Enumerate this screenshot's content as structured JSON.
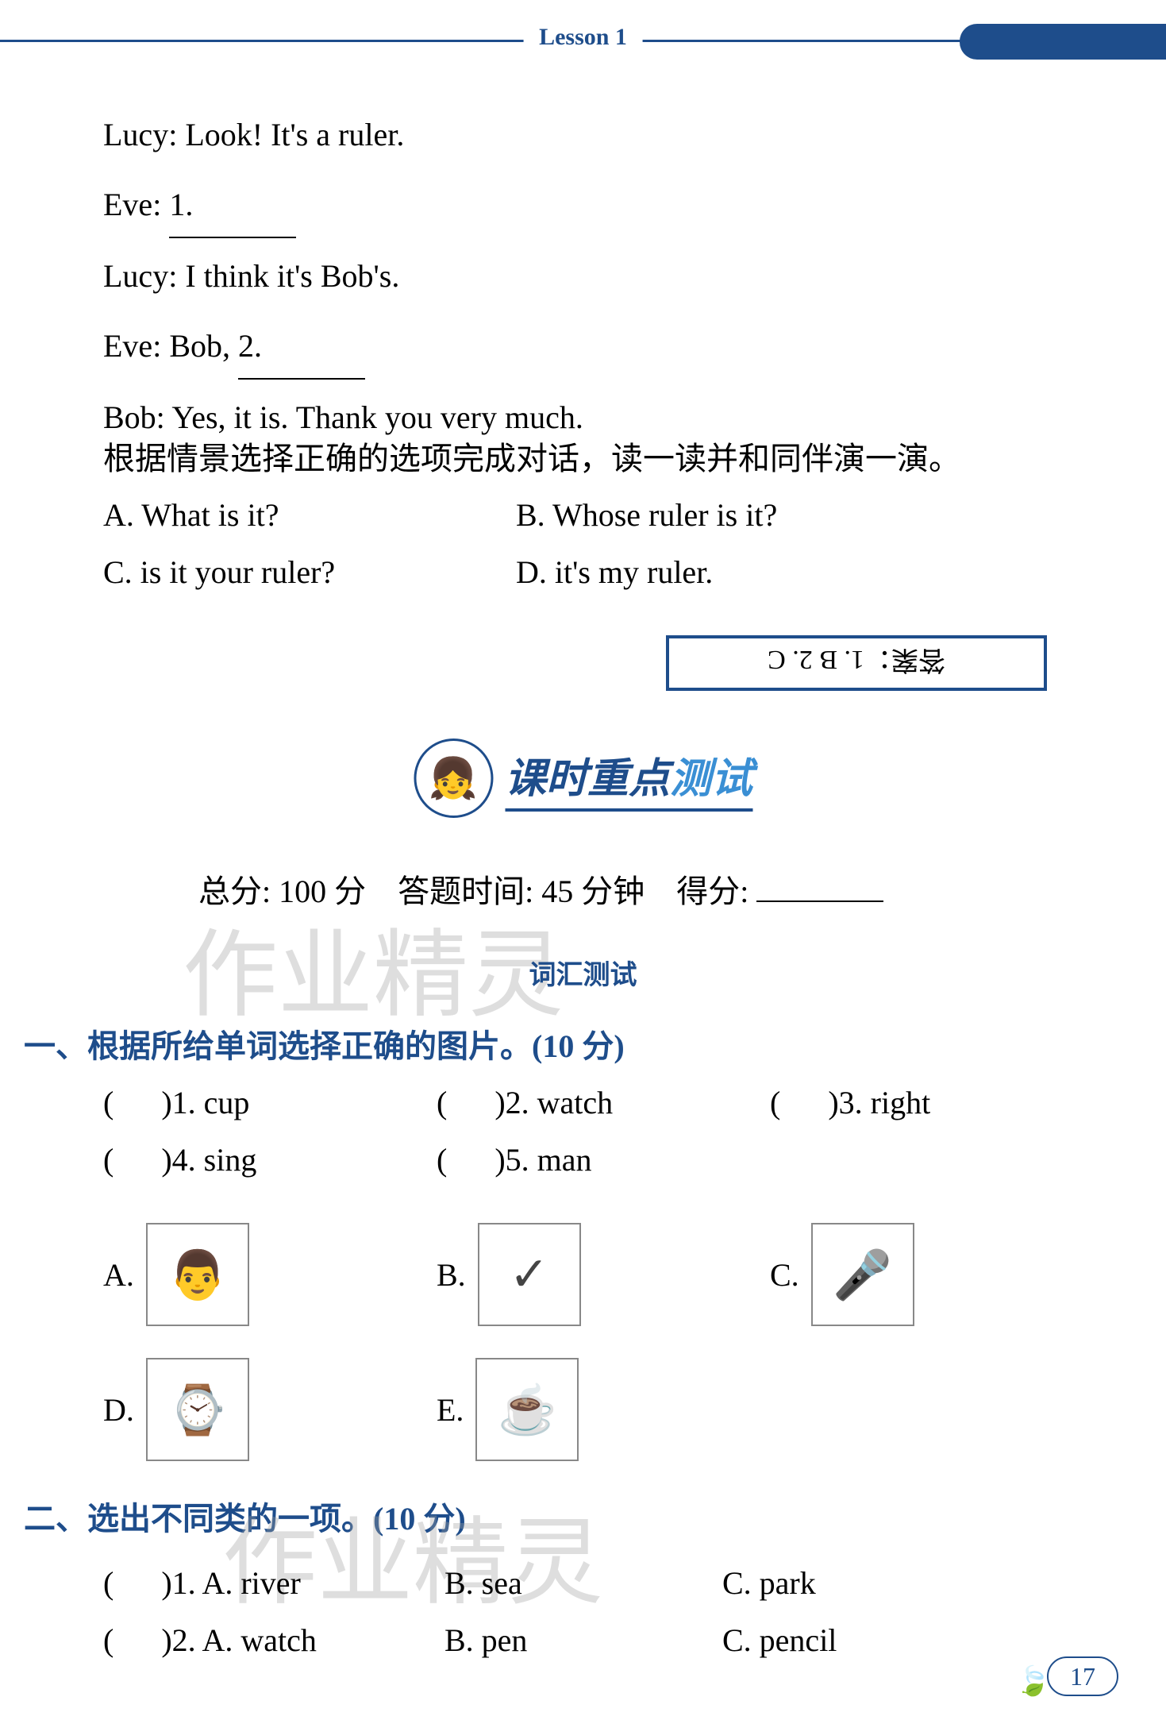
{
  "header": {
    "lesson": "Lesson 1"
  },
  "dialogue": {
    "line1_speaker": "Lucy:",
    "line1_text": "Look! It's a ruler.",
    "line2_speaker": "Eve:",
    "line2_blank": "1.",
    "line3_speaker": "Lucy:",
    "line3_text": "I think it's Bob's.",
    "line4_speaker": "Eve:",
    "line4_text1": "Bob,",
    "line4_blank": "2.",
    "line5_speaker": "Bob:",
    "line5_text": "Yes, it is. Thank you very much.",
    "instruction": "根据情景选择正确的选项完成对话，读一读并和同伴演一演。",
    "optA": "A. What is it?",
    "optB": "B. Whose ruler is it?",
    "optC": "C. is it your ruler?",
    "optD": "D. it's my ruler.",
    "answer": "答案：1. B  2. C"
  },
  "section": {
    "title1": "课时重点",
    "title2": "测试",
    "score_total_label": "总分:",
    "score_total_value": "100 分",
    "time_label": "答题时间:",
    "time_value": "45 分钟",
    "score_label": "得分:",
    "vocab_label": "词汇测试"
  },
  "watermarks": {
    "w1": "作业精灵",
    "w2": "作业精灵"
  },
  "q1": {
    "title": "一、根据所给单词选择正确的图片。(10 分)",
    "items": [
      {
        "num": "1.",
        "word": "cup"
      },
      {
        "num": "2.",
        "word": "watch"
      },
      {
        "num": "3.",
        "word": "right"
      },
      {
        "num": "4.",
        "word": "sing"
      },
      {
        "num": "5.",
        "word": "man"
      }
    ],
    "pics": [
      {
        "label": "A.",
        "icon": "👨"
      },
      {
        "label": "B.",
        "icon": "✓"
      },
      {
        "label": "C.",
        "icon": "🎤"
      },
      {
        "label": "D.",
        "icon": "⌚"
      },
      {
        "label": "E.",
        "icon": "☕"
      }
    ]
  },
  "q2": {
    "title": "二、选出不同类的一项。(10 分)",
    "rows": [
      {
        "num": "1.",
        "a": "A. river",
        "b": "B. sea",
        "c": "C. park"
      },
      {
        "num": "2.",
        "a": "A. watch",
        "b": "B. pen",
        "c": "C. pencil"
      }
    ]
  },
  "page": "17",
  "colors": {
    "primary": "#1e4d8b",
    "secondary": "#3a8fd4"
  }
}
